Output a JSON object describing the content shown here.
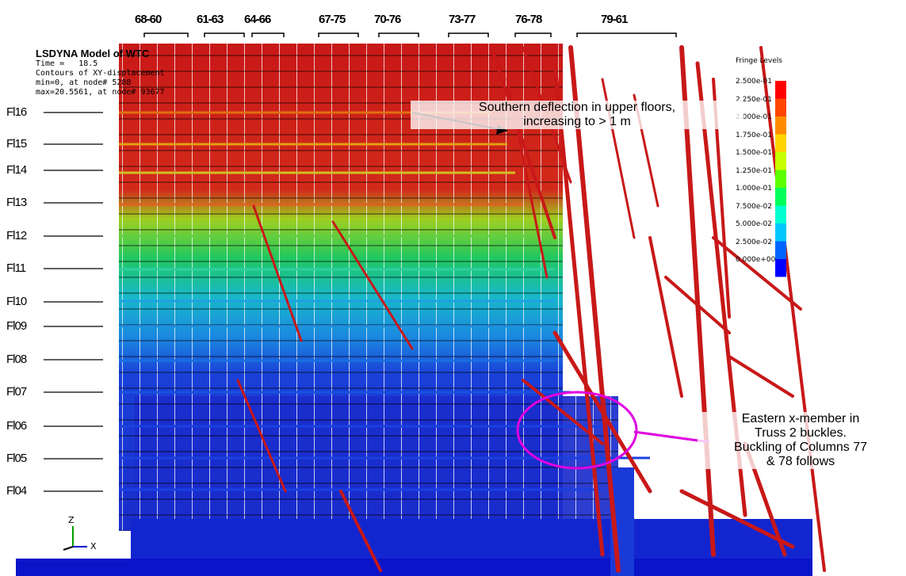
{
  "columns": [
    "68-60",
    "61-63",
    "64-66",
    "67-75",
    "70-76",
    "73-77",
    "76-78",
    "79-61"
  ],
  "floors": [
    "Fl16",
    "Fl15",
    "Fl14",
    "Fl13",
    "Fl12",
    "Fl11",
    "Fl10",
    "Fl09",
    "Fl08",
    "Fl07",
    "Fl06",
    "Fl05",
    "Fl04"
  ],
  "header": {
    "title": "LSDYNA Model of WTC",
    "time_label": "Time =",
    "time_value": "18.5",
    "contours": "Contours of XY-displacement",
    "min_line": "min=0, at node# 5288",
    "max_line": "max=20.5561, at node# 93677"
  },
  "legend": {
    "title": "Fringe Levels",
    "levels": [
      "2.500e-01",
      "2.250e-01",
      "2.000e-01",
      "1.750e-01",
      "1.500e-01",
      "1.250e-01",
      "1.000e-01",
      "7.500e-02",
      "5.000e-02",
      "2.500e-02",
      "0.000e+00"
    ],
    "colors": [
      "#ff0000",
      "#ff4500",
      "#ff8c00",
      "#ffd400",
      "#c8ff00",
      "#5cff00",
      "#00ff5a",
      "#00ffd0",
      "#00c8ff",
      "#0064ff",
      "#0000ff"
    ]
  },
  "annotations": {
    "south": [
      "Southern deflection in upper floors,",
      "increasing to > 1 m"
    ],
    "east": [
      "Eastern x-member in",
      "Truss 2 buckles.",
      "Buckling of Columns 77",
      "& 78 follows"
    ]
  },
  "axes": {
    "z": "Z",
    "x": "X"
  },
  "colors": {
    "structure_red": "#c81818",
    "structure_blue": "#1a2ccc",
    "ring": "#e000e0"
  }
}
